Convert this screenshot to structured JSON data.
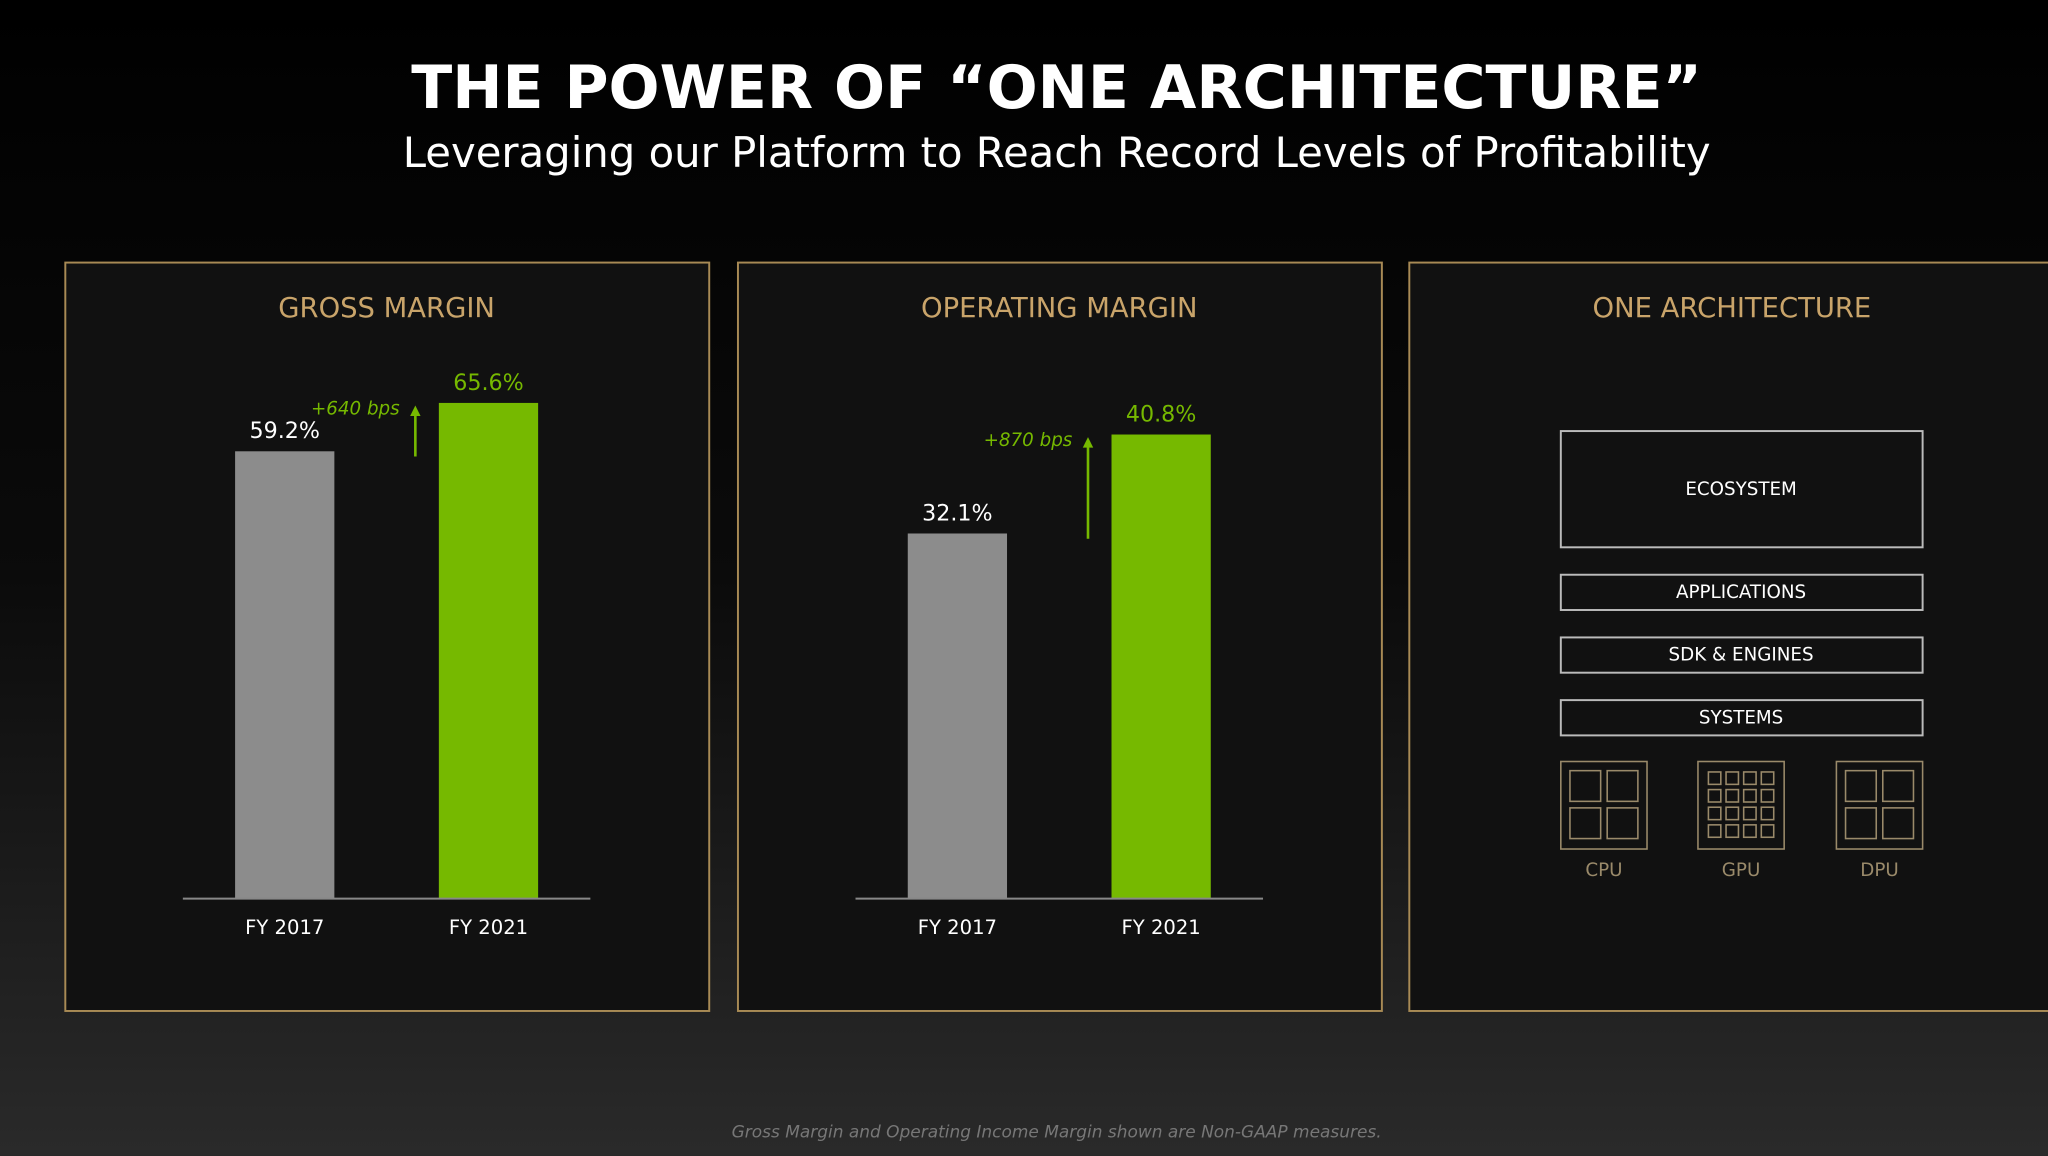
{
  "title": "THE POWER OF “ONE ARCHITECTURE”",
  "subtitle": "Leveraging our Platform to Reach Record Levels of Profitability",
  "chart_data": [
    {
      "type": "bar",
      "title": "GROSS MARGIN",
      "categories": [
        "FY 2017",
        "FY 2021"
      ],
      "values": [
        59.2,
        65.6
      ],
      "value_labels": [
        "59.2%",
        "65.6%"
      ],
      "colors": [
        "#8c8c8c",
        "#76b900"
      ],
      "value_label_colors": [
        "#ffffff",
        "#76b900"
      ],
      "annotation": "+640 bps",
      "ylim": [
        0,
        70
      ]
    },
    {
      "type": "bar",
      "title": "OPERATING MARGIN",
      "categories": [
        "FY 2017",
        "FY 2021"
      ],
      "values": [
        32.1,
        40.8
      ],
      "value_labels": [
        "32.1%",
        "40.8%"
      ],
      "colors": [
        "#8c8c8c",
        "#76b900"
      ],
      "value_label_colors": [
        "#ffffff",
        "#76b900"
      ],
      "annotation": "+870 bps",
      "ylim": [
        0,
        46.5
      ]
    }
  ],
  "architecture": {
    "title": "ONE ARCHITECTURE",
    "layers": [
      "ECOSYSTEM",
      "APPLICATIONS",
      "SDK & ENGINES",
      "SYSTEMS"
    ],
    "chips": [
      "CPU",
      "GPU",
      "DPU"
    ]
  },
  "footnote": "Gross Margin and Operating Income Margin shown are Non-GAAP measures."
}
